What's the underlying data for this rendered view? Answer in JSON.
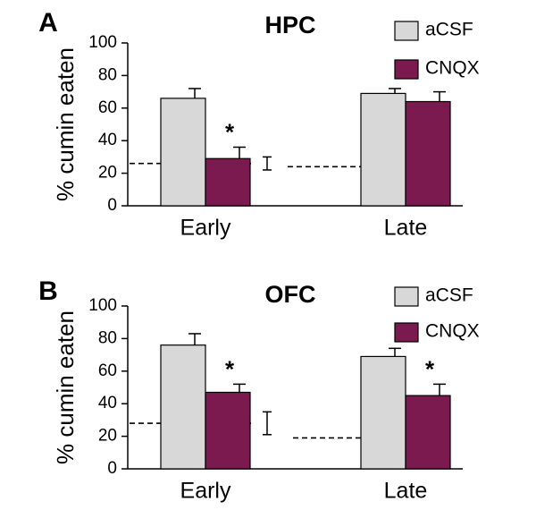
{
  "colors": {
    "aCSF": "#d8d8d8",
    "CNQX": "#7a1a4e",
    "axis": "#000000"
  },
  "chart_data": [
    {
      "type": "bar",
      "panel_label": "A",
      "title": "HPC",
      "ylabel": "% cumin eaten",
      "xlabel": "",
      "ylim": [
        0,
        100
      ],
      "yticks": [
        0,
        20,
        40,
        60,
        80,
        100
      ],
      "grid": false,
      "legend_position": "top-right",
      "categories": [
        "Early",
        "Late"
      ],
      "series": [
        {
          "name": "aCSF",
          "values": [
            66,
            69
          ],
          "errors": [
            6,
            3
          ]
        },
        {
          "name": "CNQX",
          "values": [
            29,
            64
          ],
          "errors": [
            7,
            6
          ]
        }
      ],
      "significance": [
        "*",
        ""
      ],
      "baseline": [
        {
          "category": "Early",
          "value": 26,
          "error": 4
        },
        {
          "category": "Late",
          "value": 24,
          "error": 5
        }
      ]
    },
    {
      "type": "bar",
      "panel_label": "B",
      "title": "OFC",
      "ylabel": "% cumin eaten",
      "xlabel": "",
      "ylim": [
        0,
        100
      ],
      "yticks": [
        0,
        20,
        40,
        60,
        80,
        100
      ],
      "grid": false,
      "legend_position": "top-right",
      "categories": [
        "Early",
        "Late"
      ],
      "series": [
        {
          "name": "aCSF",
          "values": [
            76,
            69
          ],
          "errors": [
            7,
            5
          ]
        },
        {
          "name": "CNQX",
          "values": [
            47,
            45
          ],
          "errors": [
            5,
            7
          ]
        }
      ],
      "significance": [
        "*",
        "*"
      ],
      "baseline": [
        {
          "category": "Early",
          "value": 28,
          "error": 7
        },
        {
          "category": "Late",
          "value": 19,
          "error": 4
        }
      ]
    }
  ]
}
